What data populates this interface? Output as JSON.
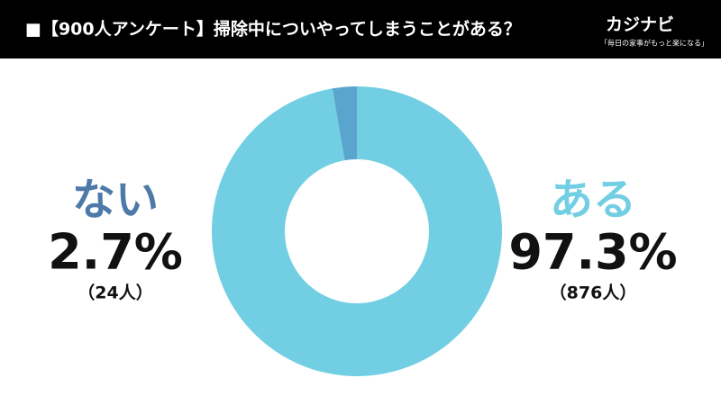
{
  "chart_data": {
    "type": "donut",
    "title": "■【900人アンケート】掃除中についやってしまうことがある？",
    "brand": "カジナビ",
    "tagline": "「毎日の家事がもっと楽になる」",
    "categories": [
      "ある",
      "ない"
    ],
    "values": [
      97.3,
      2.7
    ],
    "value_labels": [
      "97.3%",
      "2.7%"
    ],
    "counts": [
      876,
      24
    ],
    "count_labels": [
      "（876人）",
      "（24人）"
    ],
    "colors": [
      "#72cfe3",
      "#5aa5cd"
    ],
    "label_colors": [
      "#72cfe3",
      "#4d7aa8"
    ]
  }
}
